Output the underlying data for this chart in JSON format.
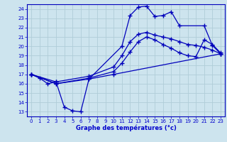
{
  "bg_color": "#cde4ee",
  "line_color": "#0000bb",
  "grid_color": "#b0cdd8",
  "xlabel": "Graphe des températures (°c)",
  "xlabel_color": "#0000cc",
  "tick_color": "#0000cc",
  "xlim": [
    -0.5,
    23.5
  ],
  "ylim": [
    12.5,
    24.5
  ],
  "yticks": [
    13,
    14,
    15,
    16,
    17,
    18,
    19,
    20,
    21,
    22,
    23,
    24
  ],
  "xticks": [
    0,
    1,
    2,
    3,
    4,
    5,
    6,
    7,
    8,
    9,
    10,
    11,
    12,
    13,
    14,
    15,
    16,
    17,
    18,
    19,
    20,
    21,
    22,
    23
  ],
  "lines": [
    {
      "x": [
        0,
        1,
        2,
        3,
        4,
        5,
        6,
        7,
        11,
        12,
        13,
        14,
        15,
        16,
        17,
        18,
        21,
        22,
        23
      ],
      "y": [
        17.0,
        16.6,
        16.0,
        16.2,
        13.5,
        13.1,
        13.0,
        16.5,
        20.0,
        23.3,
        24.2,
        24.3,
        23.2,
        23.3,
        23.7,
        22.2,
        22.2,
        20.1,
        19.2
      ]
    },
    {
      "x": [
        0,
        3,
        7,
        10,
        11,
        12,
        13,
        14,
        15,
        16,
        17,
        18,
        19,
        20,
        21,
        22,
        23
      ],
      "y": [
        17.0,
        16.2,
        16.8,
        17.8,
        19.0,
        20.5,
        21.3,
        21.5,
        21.2,
        21.0,
        20.8,
        20.5,
        20.2,
        20.1,
        19.9,
        19.6,
        19.2
      ]
    },
    {
      "x": [
        0,
        3,
        7,
        10,
        11,
        12,
        13,
        14,
        15,
        16,
        17,
        18,
        19,
        20,
        21,
        22,
        23
      ],
      "y": [
        17.0,
        16.0,
        16.6,
        17.3,
        18.2,
        19.4,
        20.5,
        21.0,
        20.7,
        20.2,
        19.8,
        19.3,
        19.0,
        18.9,
        20.7,
        20.2,
        19.3
      ]
    },
    {
      "x": [
        0,
        3,
        7,
        10,
        23
      ],
      "y": [
        17.0,
        16.0,
        16.5,
        17.0,
        19.2
      ]
    }
  ]
}
